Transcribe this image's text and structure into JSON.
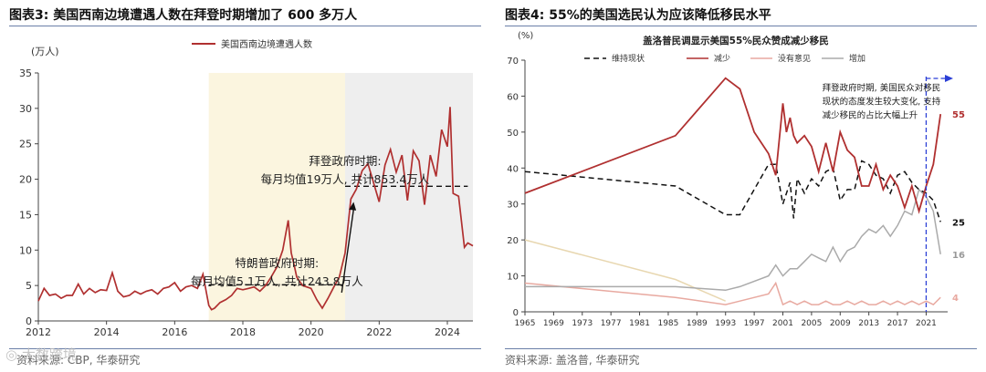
{
  "charts": {
    "left": {
      "title": "图表3:  美国西南边境遭遇人数在拜登时期增加了 600 多万人",
      "source": "资料来源:  CBP,  华泰研究"
    },
    "right": {
      "title": "图表4:  55%的美国选民认为应该降低移民水平",
      "source": "资料来源:  盖洛普,  华泰研究"
    }
  },
  "watermark": "◎ 大数跨境",
  "chart_data": [
    {
      "type": "line",
      "title": "",
      "ylabel": "(万人)",
      "xlabel": "",
      "ylim": [
        0,
        35
      ],
      "xlim": [
        2012,
        2024.75
      ],
      "yticks": [
        0,
        5,
        10,
        15,
        20,
        25,
        30,
        35
      ],
      "xticks": [
        2012,
        2014,
        2016,
        2018,
        2020,
        2022,
        2024
      ],
      "legend": {
        "position": "top-center",
        "entries": [
          "美国西南边境遭遇人数"
        ]
      },
      "regions": [
        {
          "from": 2017.0,
          "to": 2021.0,
          "color": "#fbf5df"
        },
        {
          "from": 2021.0,
          "to": 2024.75,
          "color": "#eeeeee"
        }
      ],
      "reference_lines": [
        {
          "from": 2017.0,
          "to": 2021.0,
          "y": 5.1
        },
        {
          "from": 2021.0,
          "to": 2024.6,
          "y": 19.0
        }
      ],
      "annotations": [
        {
          "lines": [
            "特朗普政府时期:",
            "每月均值5.1万人, 共计243.8万人"
          ],
          "x": 2019.0,
          "y": 7.6
        },
        {
          "lines": [
            "拜登政府时期:",
            "每月均值19万人, 共计853.4万人"
          ],
          "x": 2021.0,
          "y": 22.0
        }
      ],
      "arrow": {
        "from": [
          2020.9,
          4.0
        ],
        "to": [
          2021.25,
          16.8
        ]
      },
      "series": [
        {
          "name": "美国西南边境遭遇人数",
          "color": "#b03030",
          "x": [
            2012.0,
            2012.17,
            2012.33,
            2012.5,
            2012.67,
            2012.83,
            2013.0,
            2013.17,
            2013.33,
            2013.5,
            2013.67,
            2013.83,
            2014.0,
            2014.17,
            2014.33,
            2014.5,
            2014.67,
            2014.83,
            2015.0,
            2015.17,
            2015.33,
            2015.5,
            2015.67,
            2015.83,
            2016.0,
            2016.17,
            2016.33,
            2016.5,
            2016.67,
            2016.83,
            2017.0,
            2017.08,
            2017.17,
            2017.33,
            2017.5,
            2017.67,
            2017.83,
            2018.0,
            2018.17,
            2018.33,
            2018.5,
            2018.67,
            2018.83,
            2019.0,
            2019.17,
            2019.33,
            2019.42,
            2019.5,
            2019.58,
            2019.75,
            2020.0,
            2020.17,
            2020.33,
            2020.5,
            2020.67,
            2020.83,
            2021.0,
            2021.17,
            2021.33,
            2021.5,
            2021.67,
            2021.83,
            2022.0,
            2022.17,
            2022.33,
            2022.5,
            2022.67,
            2022.83,
            2023.0,
            2023.17,
            2023.33,
            2023.5,
            2023.67,
            2023.83,
            2024.0,
            2024.08,
            2024.17,
            2024.33,
            2024.5,
            2024.6,
            2024.75
          ],
          "y": [
            2.8,
            4.6,
            3.6,
            3.8,
            3.2,
            3.6,
            3.6,
            5.2,
            3.8,
            4.6,
            4.0,
            4.4,
            4.3,
            6.8,
            4.2,
            3.4,
            3.6,
            4.2,
            3.8,
            4.2,
            4.4,
            3.8,
            4.6,
            4.8,
            5.4,
            4.2,
            4.8,
            5.0,
            4.6,
            6.6,
            2.2,
            1.6,
            1.8,
            2.6,
            3.0,
            3.6,
            4.6,
            4.4,
            4.6,
            4.8,
            4.2,
            5.0,
            6.2,
            7.6,
            10.0,
            14.2,
            9.6,
            8.0,
            6.2,
            5.0,
            4.6,
            3.0,
            1.8,
            3.2,
            4.8,
            6.2,
            9.6,
            17.2,
            18.6,
            21.2,
            22.2,
            19.6,
            16.8,
            22.0,
            24.2,
            21.0,
            23.4,
            17.0,
            24.0,
            22.6,
            16.4,
            23.4,
            20.4,
            27.0,
            24.6,
            30.2,
            18.0,
            17.6,
            10.4,
            11.0,
            10.6
          ]
        }
      ]
    },
    {
      "type": "line",
      "title": "盖洛普民调显示美国55%民众赞成减少移民",
      "ylabel": "(%)",
      "xlabel": "",
      "ylim": [
        0,
        70
      ],
      "xlim": [
        1965,
        2024
      ],
      "yticks": [
        0,
        10,
        20,
        30,
        40,
        50,
        60,
        70
      ],
      "xticks": [
        1965,
        1969,
        1973,
        1977,
        1981,
        1985,
        1989,
        1993,
        1997,
        2001,
        2005,
        2009,
        2013,
        2017,
        2021
      ],
      "legend": {
        "position": "top",
        "entries": [
          "维持现状",
          "减少",
          "没有意见",
          "增加"
        ]
      },
      "vertical_marker": {
        "x": 2021,
        "arrow_to": 2024
      },
      "annotation": {
        "lines": [
          "拜登政府时期, 美国民众对移民",
          "现状的态度发生较大变化, 支持",
          "减少移民的占比大幅上升"
        ],
        "x": 2006.5,
        "y": 61.5
      },
      "end_labels": [
        {
          "text": "55",
          "y": 55,
          "color": "#b03030"
        },
        {
          "text": "25",
          "y": 25,
          "color": "#111111"
        },
        {
          "text": "16",
          "y": 16,
          "color": "#999999"
        },
        {
          "text": "4",
          "y": 4,
          "color": "#e8a9a0"
        }
      ],
      "series": [
        {
          "name": "维持现状",
          "color": "#111111",
          "dash": "6,4",
          "x": [
            1965,
            1986,
            1993,
            1995,
            1999,
            2000,
            2001,
            2002,
            2002.5,
            2003,
            2004,
            2005,
            2006,
            2007,
            2008,
            2009,
            2010,
            2011,
            2012,
            2013,
            2014,
            2015,
            2016,
            2017,
            2018,
            2019,
            2020,
            2021,
            2022,
            2023
          ],
          "y": [
            39,
            35,
            27,
            27,
            41,
            41,
            30,
            36,
            26,
            37,
            33,
            37,
            35,
            39,
            40,
            31,
            34,
            34,
            42,
            41,
            38,
            37,
            33,
            38,
            39,
            36,
            34,
            33,
            31,
            25
          ]
        },
        {
          "name": "减少",
          "color": "#b03030",
          "x": [
            1965,
            1986,
            1993,
            1995,
            1997,
            1999,
            2000,
            2001,
            2001.5,
            2002,
            2002.5,
            2003,
            2004,
            2005,
            2006,
            2007,
            2008,
            2009,
            2010,
            2011,
            2012,
            2013,
            2014,
            2015,
            2016,
            2017,
            2018,
            2019,
            2020,
            2021,
            2022,
            2023
          ],
          "y": [
            33,
            49,
            65,
            62,
            50,
            44,
            38,
            58,
            50,
            54,
            49,
            47,
            49,
            46,
            39,
            47,
            39,
            50,
            45,
            43,
            35,
            35,
            41,
            34,
            38,
            35,
            29,
            35,
            28,
            35,
            41,
            55
          ]
        },
        {
          "name": "没有意见",
          "color": "#e8a9a0",
          "x": [
            1965,
            1986,
            1993,
            1995,
            1999,
            2000,
            2001,
            2002,
            2003,
            2004,
            2005,
            2006,
            2007,
            2008,
            2009,
            2010,
            2011,
            2012,
            2013,
            2014,
            2015,
            2016,
            2017,
            2018,
            2019,
            2020,
            2021,
            2022,
            2023
          ],
          "y": [
            8,
            4,
            2,
            3,
            5,
            8,
            2,
            3,
            2,
            3,
            2,
            2,
            3,
            2,
            2,
            3,
            2,
            3,
            2,
            2,
            3,
            2,
            3,
            2,
            3,
            2,
            3,
            2,
            4
          ]
        },
        {
          "name": "增加",
          "color": "#aaaaaa",
          "x": [
            1965,
            1986,
            1993,
            1995,
            1999,
            2000,
            2001,
            2002,
            2003,
            2004,
            2005,
            2006,
            2007,
            2008,
            2009,
            2010,
            2011,
            2012,
            2013,
            2014,
            2015,
            2016,
            2017,
            2018,
            2019,
            2020,
            2021,
            2022,
            2023
          ],
          "y": [
            7,
            7,
            6,
            7,
            10,
            13,
            10,
            12,
            12,
            14,
            16,
            15,
            14,
            18,
            14,
            17,
            18,
            21,
            23,
            22,
            24,
            21,
            24,
            28,
            27,
            34,
            32,
            28,
            16
          ]
        },
        {
          "name": "",
          "color": "#e8d7b0",
          "x": [
            1965,
            1986,
            1993
          ],
          "y": [
            20,
            9,
            3
          ]
        }
      ]
    }
  ]
}
